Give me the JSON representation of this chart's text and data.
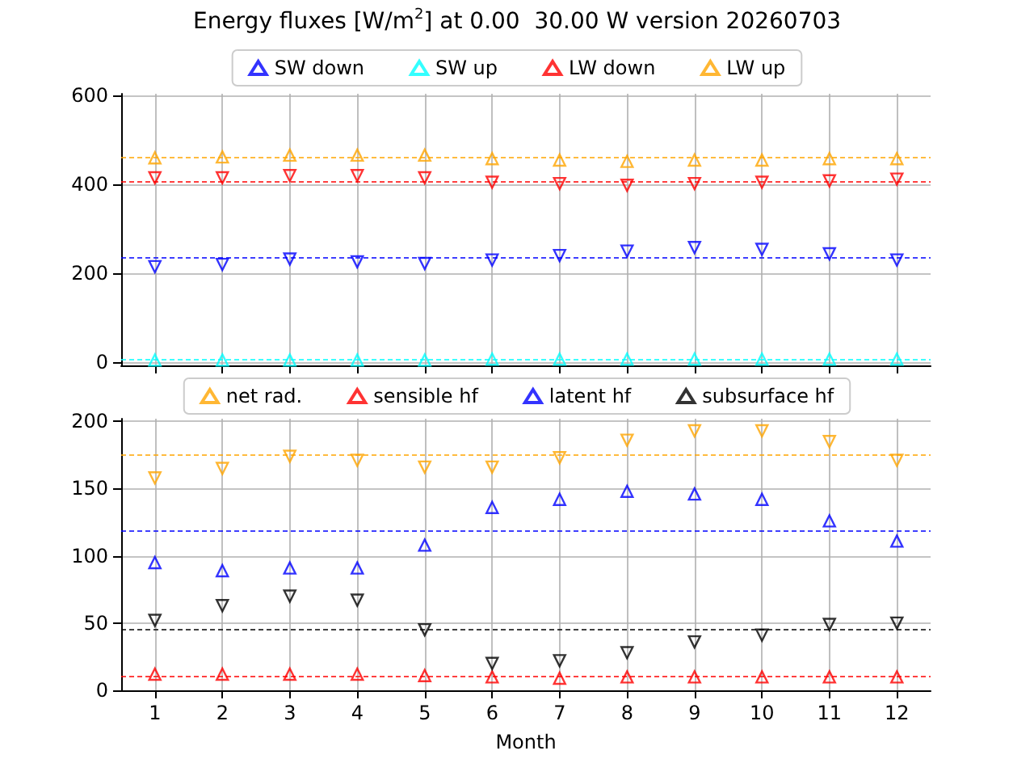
{
  "chart_data": [
    {
      "type": "scatter",
      "title": "Energy fluxes [W/m$^{2}$] at 0.00  30.00 W version 20260703",
      "x": [
        1,
        2,
        3,
        4,
        5,
        6,
        7,
        8,
        9,
        10,
        11,
        12
      ],
      "xlim": [
        0.5,
        12.5
      ],
      "xticks": [
        1,
        2,
        3,
        4,
        5,
        6,
        7,
        8,
        9,
        10,
        11,
        12
      ],
      "ylim": [
        -7,
        604
      ],
      "yticks": [
        0,
        200,
        400,
        600
      ],
      "grid": true,
      "legend": "top",
      "tick_labels": "y",
      "series": [
        {
          "name": "SW down",
          "color": "#0000ff",
          "marker": "triangle-down",
          "values": [
            215,
            220,
            232,
            226,
            222,
            230,
            240,
            250,
            258,
            254,
            244,
            230
          ]
        },
        {
          "name": "SW up",
          "color": "#00ffff",
          "marker": "triangle",
          "values": [
            5,
            5,
            5,
            5,
            5,
            7,
            7,
            7,
            7,
            7,
            7,
            7
          ]
        },
        {
          "name": "LW down",
          "color": "#ff0000",
          "marker": "triangle-down",
          "values": [
            415,
            415,
            420,
            420,
            415,
            405,
            402,
            398,
            402,
            405,
            408,
            412
          ]
        },
        {
          "name": "LW up",
          "color": "#ffa500",
          "marker": "triangle",
          "values": [
            460,
            462,
            466,
            466,
            466,
            458,
            455,
            452,
            455,
            455,
            458,
            458
          ]
        }
      ],
      "ref_lines": [
        {
          "axis": "y",
          "value": 235,
          "color": "#0000ff",
          "line_style": "dashed"
        },
        {
          "axis": "y",
          "value": 8,
          "color": "#00ffff",
          "line_style": "dashed"
        },
        {
          "axis": "y",
          "value": 408,
          "color": "#ff0000",
          "line_style": "dashed"
        },
        {
          "axis": "y",
          "value": 460,
          "color": "#ffa500",
          "line_style": "dashed"
        }
      ]
    },
    {
      "type": "scatter",
      "xlabel": "Month",
      "x": [
        1,
        2,
        3,
        4,
        5,
        6,
        7,
        8,
        9,
        10,
        11,
        12
      ],
      "xlim": [
        0.5,
        12.5
      ],
      "xticks": [
        1,
        2,
        3,
        4,
        5,
        6,
        7,
        8,
        9,
        10,
        11,
        12
      ],
      "ylim": [
        0,
        202
      ],
      "yticks": [
        0,
        50,
        100,
        150,
        200
      ],
      "grid": true,
      "legend": "top",
      "series": [
        {
          "name": "net rad.",
          "color": "#ffa500",
          "marker": "triangle-down",
          "values": [
            158,
            165,
            174,
            171,
            166,
            166,
            173,
            186,
            193,
            193,
            185,
            171
          ]
        },
        {
          "name": "sensible hf",
          "color": "#ff0000",
          "marker": "triangle",
          "values": [
            12,
            12,
            12,
            12,
            11,
            10,
            9,
            10,
            10,
            10,
            10,
            10
          ]
        },
        {
          "name": "latent hf",
          "color": "#0000ff",
          "marker": "triangle",
          "values": [
            95,
            89,
            91,
            91,
            108,
            136,
            142,
            148,
            146,
            142,
            126,
            111
          ]
        },
        {
          "name": "subsurface hf",
          "color": "#000000",
          "marker": "triangle-down",
          "values": [
            52,
            63,
            70,
            67,
            45,
            20,
            22,
            28,
            36,
            41,
            49,
            50
          ]
        }
      ],
      "ref_lines": [
        {
          "axis": "y",
          "value": 175,
          "color": "#ffa500",
          "line_style": "dashed"
        },
        {
          "axis": "y",
          "value": 11,
          "color": "#ff0000",
          "line_style": "dashed"
        },
        {
          "axis": "y",
          "value": 119,
          "color": "#0000ff",
          "line_style": "dashed"
        },
        {
          "axis": "y",
          "value": 45,
          "color": "#000000",
          "line_style": "dashed"
        }
      ]
    }
  ]
}
